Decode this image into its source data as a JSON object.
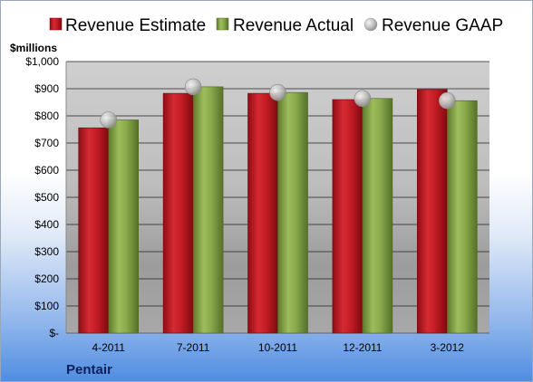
{
  "chart_data": {
    "type": "bar",
    "unit_label": "$millions",
    "company": "Pentair",
    "categories": [
      "4-2011",
      "7-2011",
      "10-2011",
      "12-2011",
      "3-2012"
    ],
    "series": [
      {
        "name": "Revenue Estimate",
        "kind": "bar",
        "color": "#cc1f28",
        "values": [
          756,
          883,
          883,
          860,
          897
        ]
      },
      {
        "name": "Revenue Actual",
        "kind": "bar",
        "color": "#8aab4a",
        "values": [
          785,
          907,
          886,
          864,
          856
        ]
      },
      {
        "name": "Revenue GAAP",
        "kind": "marker",
        "color": "#b8b8b8",
        "values": [
          785,
          907,
          886,
          864,
          856
        ]
      }
    ],
    "yticks": [
      "$-",
      "$100",
      "$200",
      "$300",
      "$400",
      "$500",
      "$600",
      "$700",
      "$800",
      "$900",
      "$1,000"
    ],
    "ylim": [
      0,
      1000
    ],
    "grid": true,
    "legend_position": "top"
  }
}
